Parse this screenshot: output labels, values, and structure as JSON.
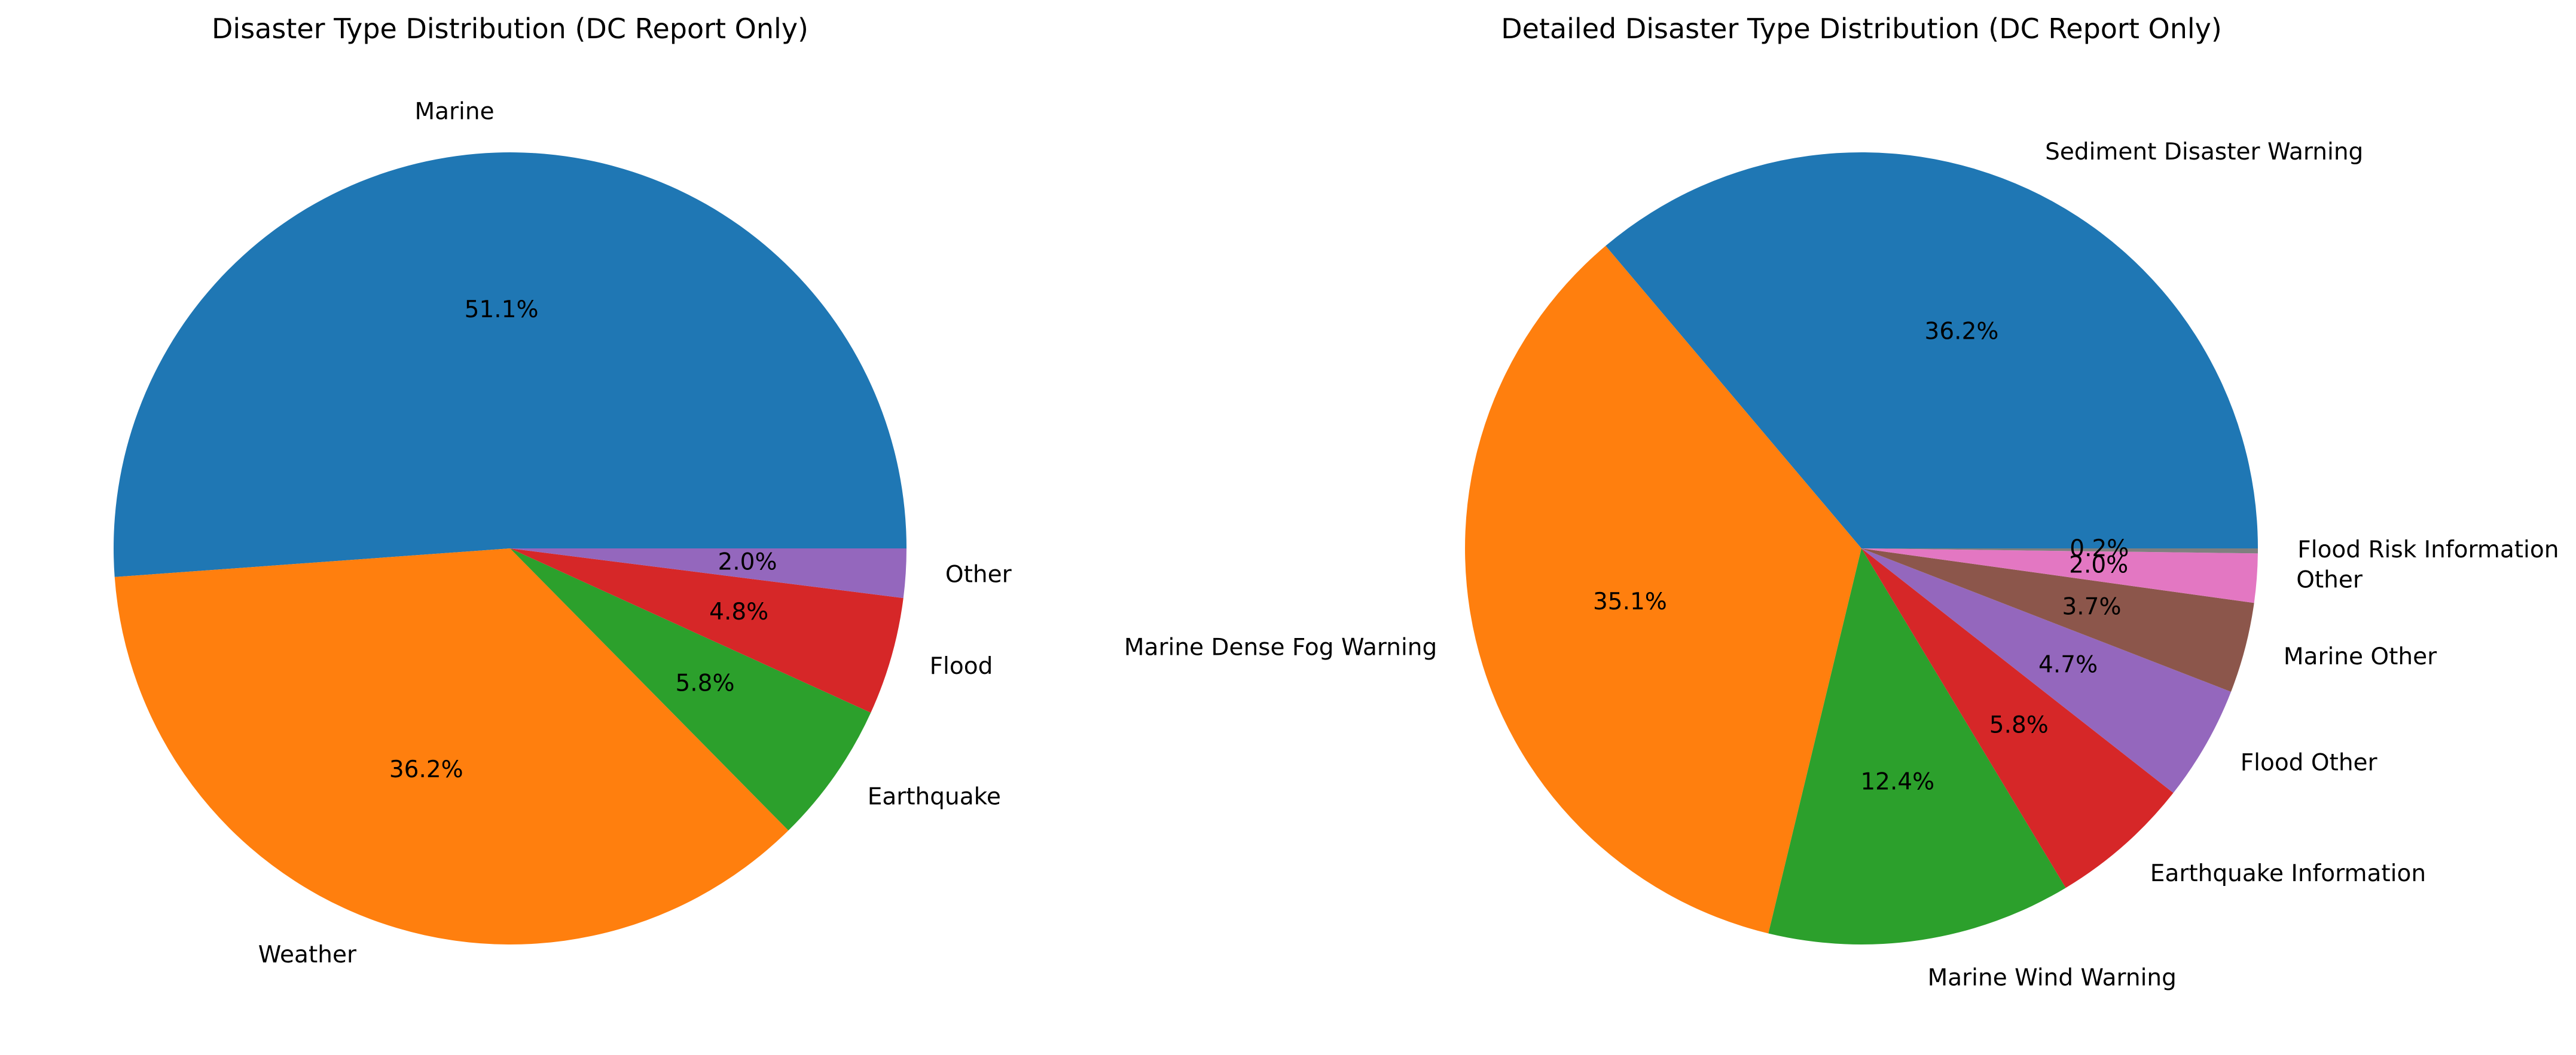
{
  "chart_data": [
    {
      "type": "pie",
      "title": "Disaster Type Distribution (DC Report Only)",
      "slices": [
        {
          "label": "Marine",
          "value": 51.1,
          "pct_label": "51.1%",
          "color": "#1f77b4"
        },
        {
          "label": "Weather",
          "value": 36.2,
          "pct_label": "36.2%",
          "color": "#ff7f0e"
        },
        {
          "label": "Earthquake",
          "value": 5.8,
          "pct_label": "5.8%",
          "color": "#2ca02c"
        },
        {
          "label": "Flood",
          "value": 4.8,
          "pct_label": "4.8%",
          "color": "#d62728"
        },
        {
          "label": "Other",
          "value": 2.0,
          "pct_label": "2.0%",
          "color": "#9467bd"
        }
      ],
      "start_angle_deg": 0,
      "direction": "counterclockwise"
    },
    {
      "type": "pie",
      "title": "Detailed Disaster Type Distribution (DC Report Only)",
      "slices": [
        {
          "label": "Sediment Disaster Warning",
          "value": 36.2,
          "pct_label": "36.2%",
          "color": "#1f77b4"
        },
        {
          "label": "Marine Dense Fog Warning",
          "value": 35.1,
          "pct_label": "35.1%",
          "color": "#ff7f0e"
        },
        {
          "label": "Marine Wind Warning",
          "value": 12.4,
          "pct_label": "12.4%",
          "color": "#2ca02c"
        },
        {
          "label": "Earthquake Information",
          "value": 5.8,
          "pct_label": "5.8%",
          "color": "#d62728"
        },
        {
          "label": "Flood Other",
          "value": 4.7,
          "pct_label": "4.7%",
          "color": "#9467bd"
        },
        {
          "label": "Marine Other",
          "value": 3.7,
          "pct_label": "3.7%",
          "color": "#8c564b"
        },
        {
          "label": "Other",
          "value": 2.0,
          "pct_label": "2.0%",
          "color": "#e377c2"
        },
        {
          "label": "Flood Risk Information",
          "value": 0.2,
          "pct_label": "0.2%",
          "color": "#7f7f7f"
        }
      ],
      "start_angle_deg": 0,
      "direction": "counterclockwise"
    }
  ]
}
